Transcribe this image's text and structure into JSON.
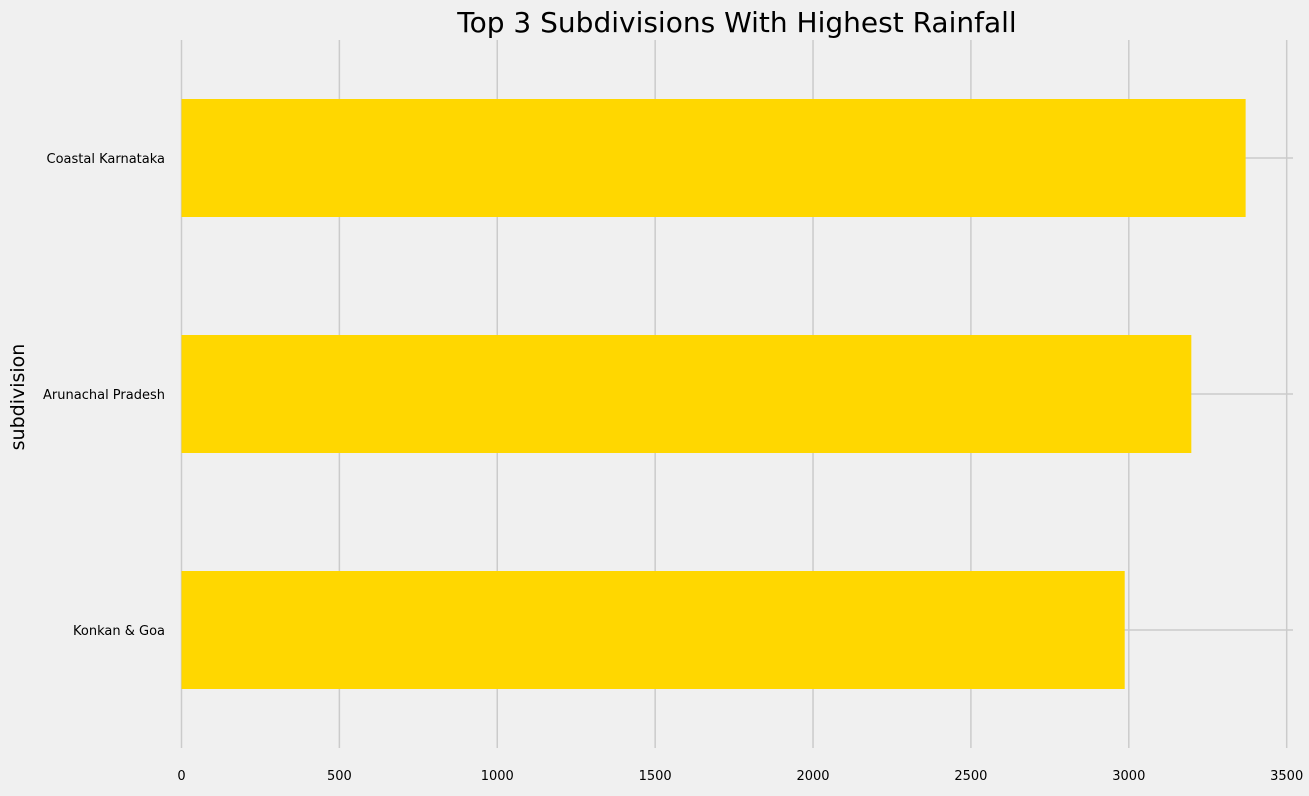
{
  "chart_data": {
    "type": "bar",
    "orientation": "horizontal",
    "title": "Top 3 Subdivisions With Highest Rainfall",
    "xlabel": "",
    "ylabel": "subdivision",
    "categories": [
      "Coastal Karnataka",
      "Arunachal Pradesh",
      "Konkan & Goa"
    ],
    "values": [
      3370,
      3198,
      2987
    ],
    "x_ticks": [
      0,
      500,
      1000,
      1500,
      2000,
      2500,
      3000,
      3500
    ],
    "xlim": [
      0,
      3520
    ],
    "grid": true,
    "bar_color": "#ffd700",
    "background_color": "#f0f0f0",
    "grid_color": "#cbcbcb"
  }
}
